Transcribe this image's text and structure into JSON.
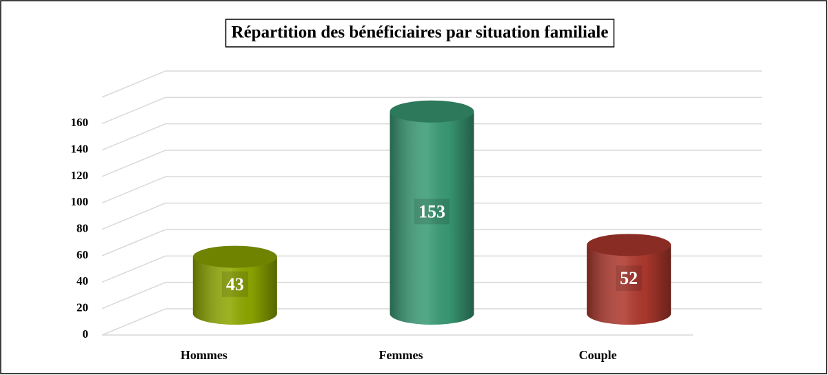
{
  "chart_data": {
    "type": "bar3d",
    "title": "Répartition des bénéficiaires par situation familiale",
    "categories": [
      "Hommes",
      "Femmes",
      "Couple"
    ],
    "values": [
      43,
      153,
      52
    ],
    "colors": [
      "#8fa800",
      "#3a9c77",
      "#b0392e"
    ],
    "ylim": [
      0,
      180
    ],
    "yticks": [
      0,
      20,
      40,
      60,
      80,
      100,
      120,
      140,
      160
    ],
    "grid": true
  }
}
